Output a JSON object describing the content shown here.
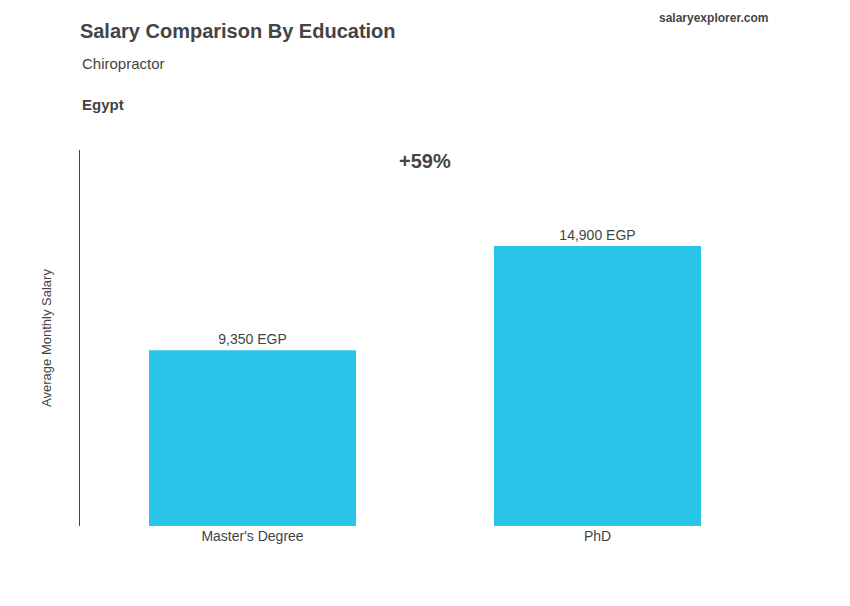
{
  "chart_data": {
    "type": "bar",
    "title": "Salary Comparison By Education",
    "subtitle": "Chiropractor",
    "annotations": [
      "Egypt",
      "+59%",
      "salaryexplorer.com"
    ],
    "ylabel": "Average Monthly Salary",
    "categories": [
      "Master's Degree",
      "PhD"
    ],
    "values": [
      9350,
      14900
    ],
    "value_labels": [
      "9,350 EGP",
      "14,900 EGP"
    ],
    "data_labels": true,
    "color": "#29c4e8",
    "ylim": [
      0,
      20000
    ],
    "tick_labels": "x",
    "grid": false
  }
}
